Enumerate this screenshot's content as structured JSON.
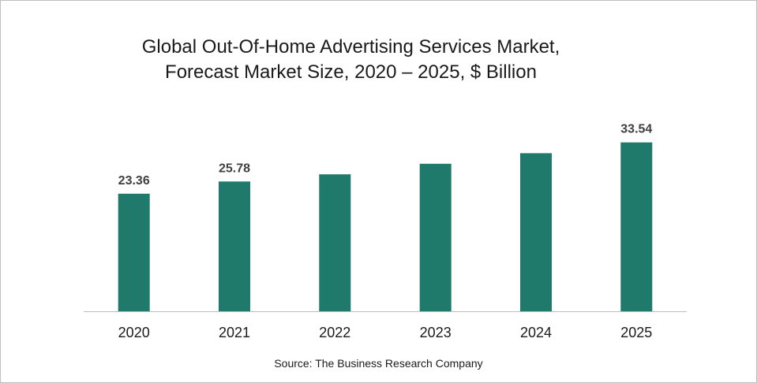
{
  "chart_data": {
    "type": "bar",
    "title_lines": [
      "Global Out-Of-Home Advertising Services Market,",
      "Forecast Market Size, 2020 – 2025, $ Billion"
    ],
    "categories": [
      "2020",
      "2021",
      "2022",
      "2023",
      "2024",
      "2025"
    ],
    "values": [
      23.36,
      25.78,
      27.2,
      29.3,
      31.4,
      33.54
    ],
    "data_labels": [
      "23.36",
      "25.78",
      "",
      "",
      "",
      "33.54"
    ],
    "ylim": [
      0,
      36
    ],
    "bar_color": "#1f7a6c",
    "axis_color": "#bfbfbf",
    "grid": false,
    "legend": "none",
    "source": "Source: The Business Research Company"
  }
}
